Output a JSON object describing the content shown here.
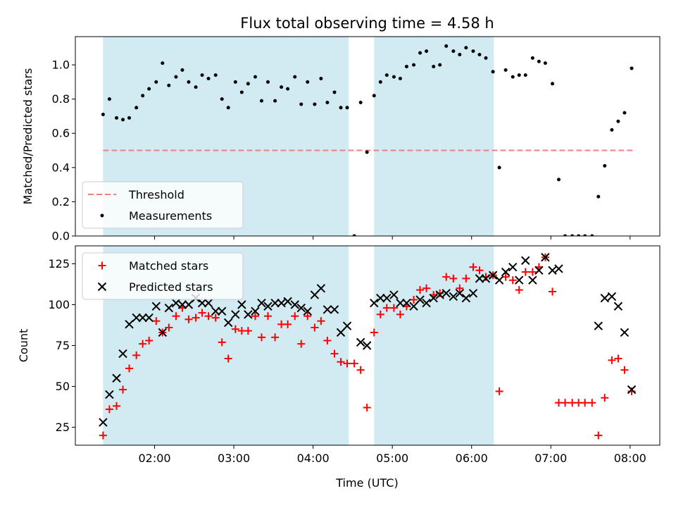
{
  "chart_data": {
    "type": "scatter",
    "title": "Flux total observing time = 4.58 h",
    "colors": {
      "band": "#add8e6",
      "threshold": "#f08080",
      "measurement": "#000000",
      "matched": "#ff0000",
      "predicted": "#000000"
    },
    "shaded_intervals_hours": [
      [
        1.35,
        4.45
      ],
      [
        4.77,
        6.28
      ]
    ],
    "panels": [
      {
        "id": "ratio",
        "ylabel": "Matched/Predicted stars",
        "xlim": [
          1.0,
          8.375
        ],
        "ylim": [
          0.0,
          1.165
        ],
        "yticks": [
          0.0,
          0.2,
          0.4,
          0.6,
          0.8,
          1.0
        ],
        "ytick_labels": [
          "0.0",
          "0.2",
          "0.4",
          "0.6",
          "0.8",
          "1.0"
        ],
        "legend": {
          "placement": "lower-left",
          "entries": [
            "Threshold",
            "Measurements"
          ]
        },
        "threshold": {
          "name": "Threshold",
          "y": 0.5,
          "x_range": [
            1.35,
            8.05
          ]
        },
        "series": [
          {
            "name": "Measurements",
            "marker": "dot",
            "x": [
              1.35,
              1.43,
              1.52,
              1.6,
              1.68,
              1.77,
              1.85,
              1.93,
              2.02,
              2.1,
              2.18,
              2.27,
              2.35,
              2.43,
              2.52,
              2.6,
              2.68,
              2.77,
              2.85,
              2.93,
              3.02,
              3.1,
              3.18,
              3.27,
              3.35,
              3.43,
              3.52,
              3.6,
              3.68,
              3.77,
              3.85,
              3.93,
              4.02,
              4.1,
              4.18,
              4.27,
              4.35,
              4.43,
              4.52,
              4.6,
              4.68,
              4.77,
              4.85,
              4.93,
              5.02,
              5.1,
              5.18,
              5.27,
              5.35,
              5.43,
              5.52,
              5.6,
              5.68,
              5.77,
              5.85,
              5.93,
              6.02,
              6.1,
              6.18,
              6.27,
              6.35,
              6.43,
              6.52,
              6.6,
              6.68,
              6.77,
              6.85,
              6.93,
              7.02,
              7.1,
              7.18,
              7.27,
              7.35,
              7.43,
              7.52,
              7.6,
              7.68,
              7.77,
              7.85,
              7.93,
              8.02
            ],
            "y": [
              0.71,
              0.8,
              0.69,
              0.68,
              0.69,
              0.75,
              0.82,
              0.86,
              0.9,
              1.01,
              0.88,
              0.93,
              0.97,
              0.9,
              0.87,
              0.94,
              0.92,
              0.94,
              0.8,
              0.75,
              0.9,
              0.84,
              0.89,
              0.93,
              0.79,
              0.9,
              0.79,
              0.87,
              0.86,
              0.93,
              0.77,
              0.9,
              0.77,
              0.92,
              0.78,
              0.84,
              0.75,
              0.75,
              0.0,
              0.78,
              0.49,
              0.82,
              0.9,
              0.94,
              0.93,
              0.92,
              0.99,
              1.0,
              1.07,
              1.08,
              0.99,
              1.0,
              1.11,
              1.08,
              1.06,
              1.1,
              1.08,
              1.06,
              1.04,
              0.96,
              0.4,
              0.97,
              0.93,
              0.94,
              0.94,
              1.04,
              1.02,
              1.01,
              0.89,
              0.33,
              0.0,
              0.0,
              0.0,
              0.0,
              0.0,
              0.23,
              0.41,
              0.62,
              0.67,
              0.72,
              0.98
            ]
          }
        ]
      },
      {
        "id": "count",
        "ylabel": "Count",
        "xlabel": "Time (UTC)",
        "xlim": [
          1.0,
          8.375
        ],
        "ylim": [
          14,
          136
        ],
        "yticks": [
          25,
          50,
          75,
          100,
          125
        ],
        "ytick_labels": [
          "25",
          "50",
          "75",
          "100",
          "125"
        ],
        "xticks": [
          2,
          3,
          4,
          5,
          6,
          7,
          8
        ],
        "xtick_labels": [
          "02:00",
          "03:00",
          "04:00",
          "05:00",
          "06:00",
          "07:00",
          "08:00"
        ],
        "legend": {
          "placement": "upper-left",
          "entries": [
            "Matched stars",
            "Predicted stars"
          ]
        },
        "series": [
          {
            "name": "Matched stars",
            "marker": "plus",
            "x": [
              1.35,
              1.43,
              1.52,
              1.6,
              1.68,
              1.77,
              1.85,
              1.93,
              2.02,
              2.1,
              2.18,
              2.27,
              2.35,
              2.43,
              2.52,
              2.6,
              2.68,
              2.77,
              2.85,
              2.93,
              3.02,
              3.1,
              3.18,
              3.27,
              3.35,
              3.43,
              3.52,
              3.6,
              3.68,
              3.77,
              3.85,
              3.93,
              4.02,
              4.1,
              4.18,
              4.27,
              4.35,
              4.43,
              4.52,
              4.6,
              4.68,
              4.77,
              4.85,
              4.93,
              5.02,
              5.1,
              5.18,
              5.27,
              5.35,
              5.43,
              5.52,
              5.6,
              5.68,
              5.77,
              5.85,
              5.93,
              6.02,
              6.1,
              6.18,
              6.27,
              6.35,
              6.43,
              6.52,
              6.6,
              6.68,
              6.77,
              6.85,
              6.93,
              7.02,
              7.1,
              7.18,
              7.27,
              7.35,
              7.43,
              7.52,
              7.6,
              7.68,
              7.77,
              7.85,
              7.93,
              8.02
            ],
            "y": [
              20,
              36,
              38,
              48,
              61,
              69,
              76,
              78,
              90,
              83,
              86,
              93,
              98,
              91,
              92,
              95,
              93,
              92,
              77,
              67,
              85,
              84,
              84,
              93,
              80,
              93,
              80,
              88,
              88,
              93,
              76,
              93,
              86,
              90,
              78,
              70,
              65,
              64,
              64,
              60,
              37,
              83,
              94,
              98,
              98,
              94,
              99,
              103,
              109,
              110,
              106,
              107,
              117,
              116,
              110,
              116,
              123,
              121,
              117,
              118,
              47,
              117,
              115,
              109,
              120,
              120,
              123,
              129,
              108,
              40,
              40,
              40,
              40,
              40,
              40,
              20,
              43,
              66,
              67,
              60,
              47
            ]
          },
          {
            "name": "Predicted stars",
            "marker": "x",
            "x": [
              1.35,
              1.43,
              1.52,
              1.6,
              1.68,
              1.77,
              1.85,
              1.93,
              2.02,
              2.1,
              2.18,
              2.27,
              2.35,
              2.43,
              2.52,
              2.6,
              2.68,
              2.77,
              2.85,
              2.93,
              3.02,
              3.1,
              3.18,
              3.27,
              3.35,
              3.43,
              3.52,
              3.6,
              3.68,
              3.77,
              3.85,
              3.93,
              4.02,
              4.1,
              4.18,
              4.27,
              4.35,
              4.43,
              4.6,
              4.68,
              4.77,
              4.85,
              4.93,
              5.02,
              5.1,
              5.18,
              5.27,
              5.35,
              5.43,
              5.52,
              5.6,
              5.68,
              5.77,
              5.85,
              5.93,
              6.02,
              6.1,
              6.18,
              6.27,
              6.35,
              6.43,
              6.52,
              6.6,
              6.68,
              6.77,
              6.85,
              6.93,
              7.02,
              7.1,
              7.6,
              7.68,
              7.77,
              7.85,
              7.93,
              8.02
            ],
            "y": [
              28,
              45,
              55,
              70,
              88,
              92,
              92,
              92,
              99,
              83,
              98,
              101,
              100,
              100,
              104,
              101,
              101,
              96,
              96,
              89,
              94,
              100,
              94,
              96,
              101,
              99,
              101,
              101,
              102,
              100,
              98,
              96,
              106,
              110,
              97,
              97,
              83,
              87,
              77,
              75,
              101,
              104,
              104,
              106,
              101,
              101,
              99,
              103,
              101,
              104,
              106,
              107,
              105,
              107,
              104,
              107,
              116,
              116,
              118,
              115,
              120,
              123,
              115,
              127,
              115,
              121,
              129,
              121,
              122,
              87,
              104,
              105,
              99,
              83,
              48
            ]
          }
        ]
      }
    ]
  }
}
